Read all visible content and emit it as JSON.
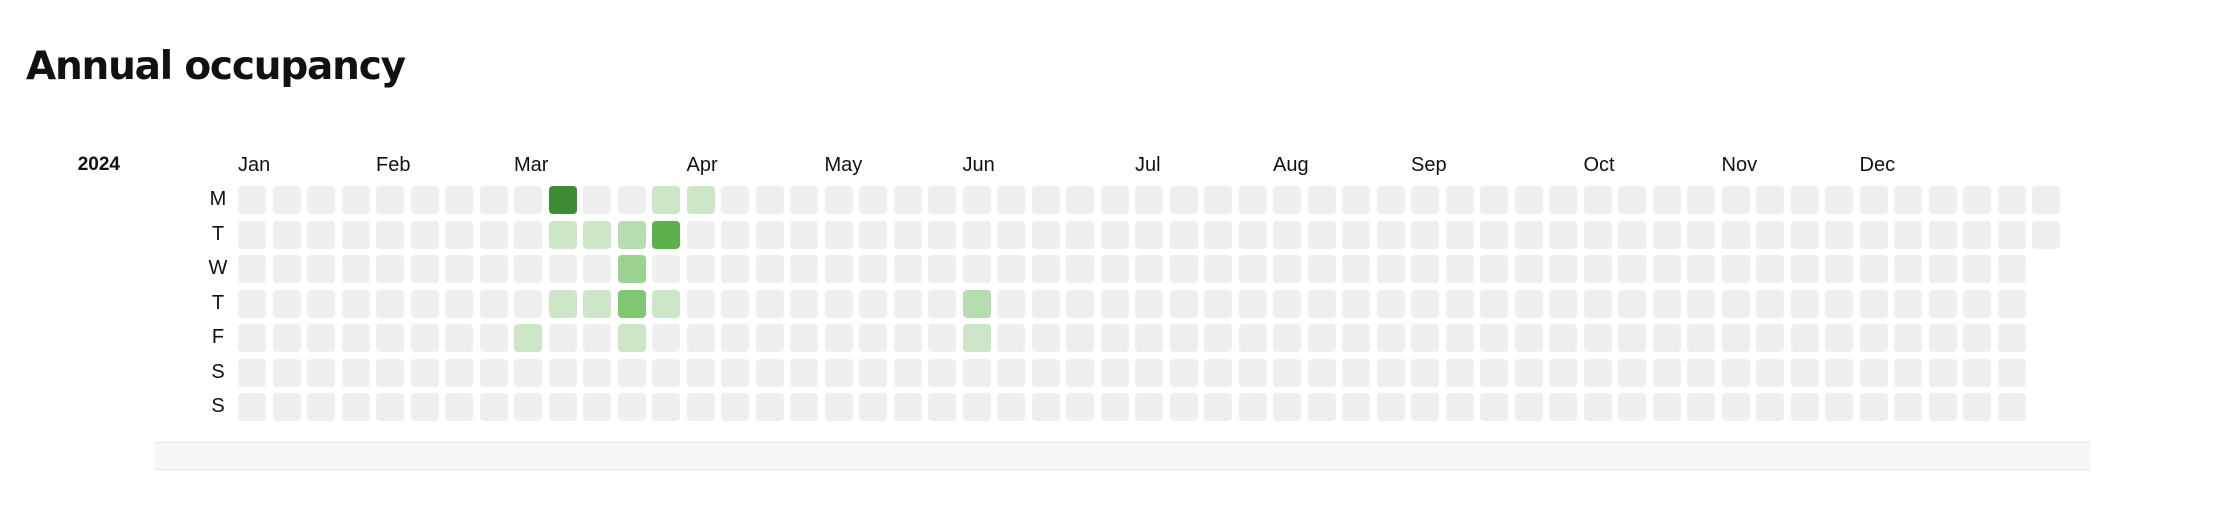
{
  "page": {
    "title": "Annual occupancy"
  },
  "chart_data": {
    "type": "heatmap",
    "title": "Annual occupancy",
    "year": "2024",
    "months": [
      "Jan",
      "Feb",
      "Mar",
      "Apr",
      "May",
      "Jun",
      "Jul",
      "Aug",
      "Sep",
      "Oct",
      "Nov",
      "Dec"
    ],
    "days": [
      "M",
      "T",
      "W",
      "T",
      "F",
      "S",
      "S"
    ],
    "weeks": 53,
    "scale_levels": 6,
    "colors": [
      "#efefef",
      "#cde6c7",
      "#b6ddb0",
      "#9bd191",
      "#80c774",
      "#5cb14c",
      "#3d8b34"
    ],
    "values": [
      {
        "week": 8,
        "day": 4,
        "level": 1
      },
      {
        "week": 9,
        "day": 3,
        "level": 1
      },
      {
        "week": 9,
        "day": 0,
        "level": 6
      },
      {
        "week": 9,
        "day": 1,
        "level": 1
      },
      {
        "week": 10,
        "day": 1,
        "level": 1
      },
      {
        "week": 10,
        "day": 3,
        "level": 1
      },
      {
        "week": 11,
        "day": 1,
        "level": 2
      },
      {
        "week": 11,
        "day": 2,
        "level": 3
      },
      {
        "week": 11,
        "day": 3,
        "level": 4
      },
      {
        "week": 11,
        "day": 4,
        "level": 1
      },
      {
        "week": 12,
        "day": 0,
        "level": 1
      },
      {
        "week": 12,
        "day": 1,
        "level": 5
      },
      {
        "week": 12,
        "day": 3,
        "level": 1
      },
      {
        "week": 13,
        "day": 0,
        "level": 1
      },
      {
        "week": 21,
        "day": 3,
        "level": 2
      },
      {
        "week": 21,
        "day": 4,
        "level": 1
      }
    ]
  }
}
